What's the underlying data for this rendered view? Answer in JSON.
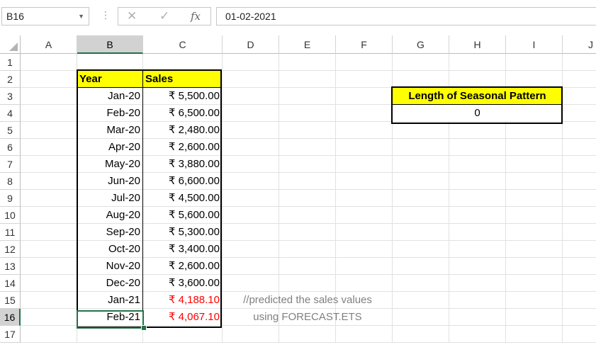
{
  "formula_bar": {
    "name_box": "B16",
    "formula": "01-02-2021",
    "fx_label": "fx"
  },
  "columns": [
    "A",
    "B",
    "C",
    "D",
    "E",
    "F",
    "G",
    "H",
    "I",
    "J"
  ],
  "rows": [
    "1",
    "2",
    "3",
    "4",
    "5",
    "6",
    "7",
    "8",
    "9",
    "10",
    "11",
    "12",
    "13",
    "14",
    "15",
    "16",
    "17"
  ],
  "table": {
    "header_year": "Year",
    "header_sales": "Sales",
    "data": [
      {
        "month": "Jan-20",
        "sales": "₹ 5,500.00"
      },
      {
        "month": "Feb-20",
        "sales": "₹ 6,500.00"
      },
      {
        "month": "Mar-20",
        "sales": "₹ 2,480.00"
      },
      {
        "month": "Apr-20",
        "sales": "₹ 2,600.00"
      },
      {
        "month": "May-20",
        "sales": "₹ 3,880.00"
      },
      {
        "month": "Jun-20",
        "sales": "₹ 6,600.00"
      },
      {
        "month": "Jul-20",
        "sales": "₹ 4,500.00"
      },
      {
        "month": "Aug-20",
        "sales": "₹ 5,600.00"
      },
      {
        "month": "Sep-20",
        "sales": "₹ 5,300.00"
      },
      {
        "month": "Oct-20",
        "sales": "₹ 3,400.00"
      },
      {
        "month": "Nov-20",
        "sales": "₹ 2,600.00"
      },
      {
        "month": "Dec-20",
        "sales": "₹ 3,600.00"
      },
      {
        "month": "Jan-21",
        "sales": "₹ 4,188.10"
      },
      {
        "month": "Feb-21",
        "sales": "₹ 4,067.10"
      }
    ]
  },
  "seasonal": {
    "header": "Length of Seasonal Pattern",
    "value": "0"
  },
  "note": {
    "line1": "//predicted the sales values",
    "line2": "using FORECAST.ETS"
  },
  "colors": {
    "header_fill": "#ffff00",
    "predicted_text": "#ff0000",
    "selection": "#217346",
    "note_text": "#808080"
  }
}
